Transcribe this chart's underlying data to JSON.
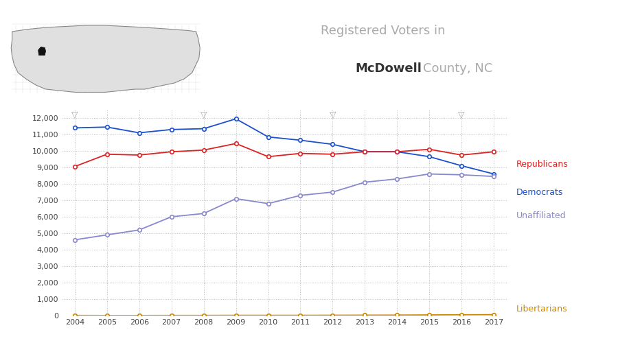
{
  "years": [
    2004,
    2005,
    2006,
    2007,
    2008,
    2009,
    2010,
    2011,
    2012,
    2013,
    2014,
    2015,
    2016,
    2017
  ],
  "democrats": [
    11400,
    11450,
    11100,
    11300,
    11350,
    11950,
    10850,
    10650,
    10400,
    9950,
    9950,
    9650,
    9100,
    8600
  ],
  "republicans": [
    9050,
    9800,
    9750,
    9950,
    10050,
    10450,
    9650,
    9850,
    9800,
    9950,
    9950,
    10100,
    9750,
    9950
  ],
  "unaffiliated": [
    4600,
    4900,
    5200,
    6000,
    6200,
    7100,
    6800,
    7300,
    7500,
    8100,
    8300,
    8600,
    8550,
    8450
  ],
  "libertarians": [
    10,
    5,
    5,
    10,
    10,
    15,
    15,
    15,
    20,
    25,
    30,
    40,
    50,
    55
  ],
  "election_years": [
    2004,
    2008,
    2012,
    2016
  ],
  "dem_color": "#1a50cc",
  "rep_color": "#dd2222",
  "unaf_color": "#8888cc",
  "lib_color": "#cc8800",
  "title_line1": "Registered Voters in",
  "title_mcDowell": "McDowell",
  "title_line2": " County, NC",
  "ylim": [
    0,
    12500
  ],
  "yticks": [
    0,
    1000,
    2000,
    3000,
    4000,
    5000,
    6000,
    7000,
    8000,
    9000,
    10000,
    11000,
    12000
  ],
  "bg_color": "#ffffff",
  "grid_color": "#aaaaaa",
  "legend_republicans": "Republicans",
  "legend_democrats": "Democrats",
  "legend_unaffiliated": "Unaffiliated",
  "legend_libertarians": "Libertarians"
}
